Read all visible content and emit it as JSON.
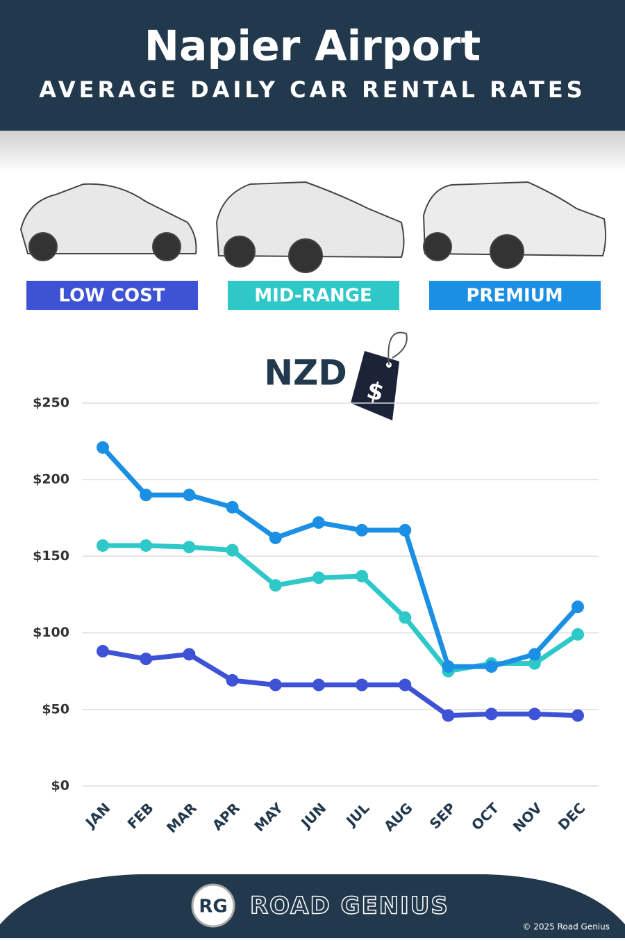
{
  "chart_data": {
    "type": "line",
    "title": "Napier Airport",
    "subtitle": "AVERAGE DAILY CAR RENTAL RATES",
    "y_label": "NZD",
    "categories": [
      "JAN",
      "FEB",
      "MAR",
      "APR",
      "MAY",
      "JUN",
      "JUL",
      "AUG",
      "SEP",
      "OCT",
      "NOV",
      "DEC"
    ],
    "series": [
      {
        "name": "LOW COST",
        "color": "#3d52d5",
        "values": [
          88,
          83,
          86,
          69,
          66,
          66,
          66,
          66,
          46,
          47,
          47,
          46
        ]
      },
      {
        "name": "MID-RANGE",
        "color": "#2fc8c8",
        "values": [
          157,
          157,
          156,
          154,
          131,
          136,
          137,
          110,
          75,
          80,
          80,
          99
        ]
      },
      {
        "name": "PREMIUM",
        "color": "#1b8fe4",
        "values": [
          221,
          190,
          190,
          182,
          162,
          172,
          167,
          167,
          78,
          78,
          86,
          117
        ]
      }
    ],
    "ylim": [
      0,
      250
    ],
    "yticks": [
      {
        "value": 0,
        "label": "$0"
      },
      {
        "value": 50,
        "label": "$50"
      },
      {
        "value": 100,
        "label": "$100"
      },
      {
        "value": 150,
        "label": "$150"
      },
      {
        "value": 200,
        "label": "$200"
      },
      {
        "value": 250,
        "label": "$250"
      }
    ],
    "grid": true
  },
  "footer": {
    "logo": "RG",
    "brand": "ROAD GENIUS",
    "copyright": "© 2025 Road Genius"
  }
}
